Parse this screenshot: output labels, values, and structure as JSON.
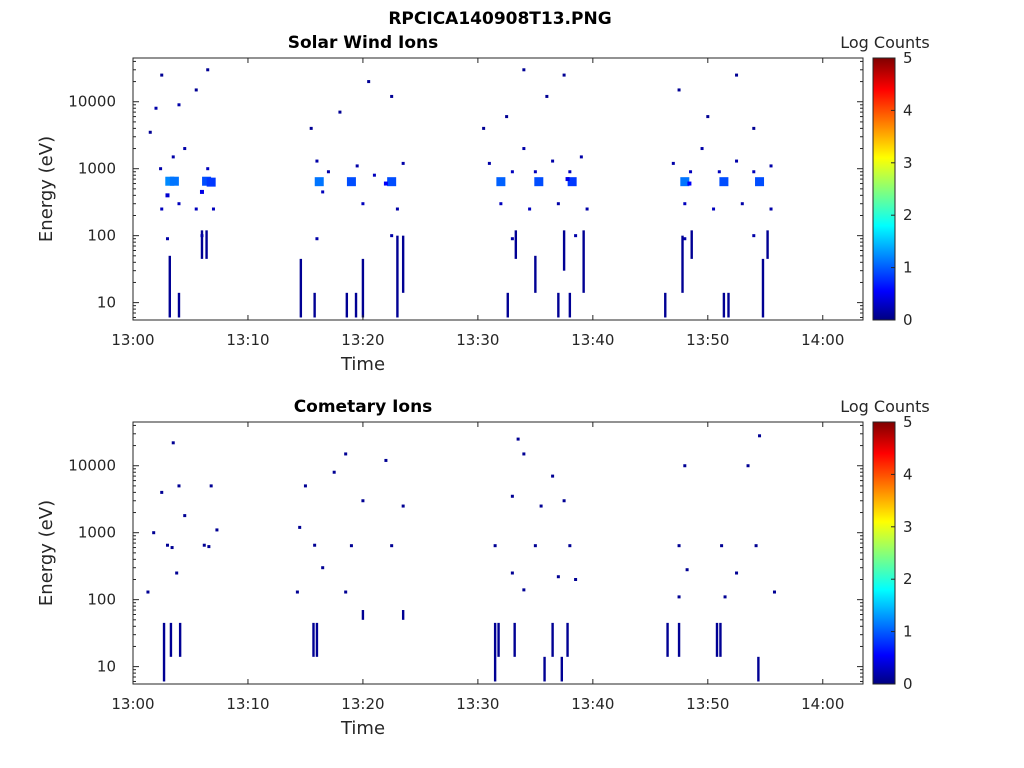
{
  "figure_title": "RPCICA140908T13.PNG",
  "chart_data": [
    {
      "type": "heatmap",
      "title": "Solar Wind Ions",
      "xlabel": "Time",
      "ylabel": "Energy (eV)",
      "x_tick_labels": [
        "13:00",
        "13:10",
        "13:20",
        "13:30",
        "13:40",
        "13:50",
        "14:00"
      ],
      "x_ticks_minutes": [
        0,
        10,
        20,
        30,
        40,
        50,
        60
      ],
      "xlim_minutes": [
        0,
        63.5
      ],
      "y_scale": "log",
      "ylim_ev": [
        5.5,
        45000
      ],
      "y_ticks": [
        10,
        100,
        1000,
        10000
      ],
      "y_tick_labels": [
        "10",
        "100",
        "1000",
        "10000"
      ],
      "grid": false,
      "colorbar": {
        "label": "Log Counts",
        "min": 0,
        "max": 5,
        "tick_labels": [
          "0",
          "1",
          "2",
          "3",
          "4",
          "5"
        ],
        "colormap": "jet"
      },
      "cells": [
        [
          3.2,
          650,
          1.3
        ],
        [
          3.6,
          650,
          1.2
        ],
        [
          6.4,
          650,
          1.0
        ],
        [
          6.8,
          630,
          0.9
        ],
        [
          16.2,
          640,
          1.2
        ],
        [
          19.0,
          640,
          1.0
        ],
        [
          22.5,
          640,
          1.0
        ],
        [
          22.0,
          600,
          0.6
        ],
        [
          32.0,
          640,
          1.1
        ],
        [
          35.3,
          640,
          1.0
        ],
        [
          38.2,
          640,
          0.9
        ],
        [
          37.8,
          700,
          0.5
        ],
        [
          48.0,
          640,
          1.2
        ],
        [
          51.4,
          640,
          1.0
        ],
        [
          54.5,
          640,
          1.0
        ],
        [
          48.4,
          600,
          0.6
        ],
        [
          2.5,
          250,
          0.3
        ],
        [
          3.0,
          400,
          0.4
        ],
        [
          4.0,
          300,
          0.3
        ],
        [
          5.5,
          250,
          0.3
        ],
        [
          6.0,
          450,
          0.5
        ],
        [
          7.0,
          250,
          0.3
        ],
        [
          2.4,
          1000,
          0.2
        ],
        [
          3.5,
          1500,
          0.2
        ],
        [
          4.5,
          2000,
          0.2
        ],
        [
          6.5,
          1000,
          0.3
        ],
        [
          2.0,
          8000,
          0.2
        ],
        [
          4.0,
          9000,
          0.2
        ],
        [
          1.5,
          3500,
          0.1
        ],
        [
          2.5,
          25000,
          0.1
        ],
        [
          5.5,
          15000,
          0.1
        ],
        [
          6.5,
          30000,
          0.1
        ],
        [
          16.0,
          1300,
          0.2
        ],
        [
          17.0,
          900,
          0.2
        ],
        [
          19.5,
          1100,
          0.2
        ],
        [
          21.0,
          800,
          0.3
        ],
        [
          23.5,
          1200,
          0.2
        ],
        [
          15.5,
          4000,
          0.1
        ],
        [
          18.0,
          7000,
          0.1
        ],
        [
          20.5,
          20000,
          0.1
        ],
        [
          22.5,
          12000,
          0.1
        ],
        [
          16.5,
          450,
          0.3
        ],
        [
          20.0,
          300,
          0.3
        ],
        [
          23.0,
          250,
          0.2
        ],
        [
          31.0,
          1200,
          0.2
        ],
        [
          33.0,
          900,
          0.3
        ],
        [
          34.0,
          2000,
          0.2
        ],
        [
          35.0,
          900,
          0.3
        ],
        [
          36.5,
          1300,
          0.2
        ],
        [
          38.0,
          900,
          0.3
        ],
        [
          39.0,
          1500,
          0.2
        ],
        [
          32.5,
          6000,
          0.1
        ],
        [
          34.0,
          30000,
          0.1
        ],
        [
          36.0,
          12000,
          0.1
        ],
        [
          37.5,
          25000,
          0.1
        ],
        [
          30.5,
          4000,
          0.1
        ],
        [
          32.0,
          300,
          0.3
        ],
        [
          34.5,
          250,
          0.3
        ],
        [
          37.0,
          300,
          0.2
        ],
        [
          39.5,
          250,
          0.2
        ],
        [
          47.0,
          1200,
          0.2
        ],
        [
          48.5,
          900,
          0.3
        ],
        [
          49.5,
          2000,
          0.2
        ],
        [
          51.0,
          900,
          0.3
        ],
        [
          52.5,
          1300,
          0.2
        ],
        [
          54.0,
          900,
          0.3
        ],
        [
          55.5,
          1100,
          0.2
        ],
        [
          47.5,
          15000,
          0.1
        ],
        [
          50.0,
          6000,
          0.1
        ],
        [
          52.5,
          25000,
          0.1
        ],
        [
          54.0,
          4000,
          0.1
        ],
        [
          48.0,
          300,
          0.3
        ],
        [
          50.5,
          250,
          0.3
        ],
        [
          53.0,
          300,
          0.2
        ],
        [
          55.5,
          250,
          0.2
        ],
        [
          3.0,
          90,
          0.2
        ],
        [
          6.0,
          100,
          0.2
        ],
        [
          16.0,
          90,
          0.2
        ],
        [
          22.5,
          100,
          0.2
        ],
        [
          33.0,
          90,
          0.2
        ],
        [
          38.5,
          100,
          0.2
        ],
        [
          48.0,
          90,
          0.2
        ],
        [
          54.0,
          100,
          0.2
        ]
      ],
      "lines": [
        [
          3.2,
          6,
          50,
          0.1
        ],
        [
          4.0,
          6,
          14,
          0.1
        ],
        [
          6.0,
          45,
          120,
          0.1
        ],
        [
          6.4,
          45,
          120,
          0.1
        ],
        [
          14.6,
          6,
          45,
          0.1
        ],
        [
          15.8,
          6,
          14,
          0.1
        ],
        [
          18.6,
          6,
          14,
          0.1
        ],
        [
          19.4,
          6,
          14,
          0.1
        ],
        [
          20.0,
          6,
          45,
          0.1
        ],
        [
          23.0,
          6,
          100,
          0.1
        ],
        [
          23.5,
          14,
          100,
          0.1
        ],
        [
          32.6,
          6,
          14,
          0.1
        ],
        [
          33.3,
          45,
          120,
          0.1
        ],
        [
          35.0,
          14,
          50,
          0.1
        ],
        [
          37.0,
          6,
          14,
          0.1
        ],
        [
          37.5,
          30,
          120,
          0.1
        ],
        [
          38.0,
          6,
          14,
          0.1
        ],
        [
          39.2,
          14,
          120,
          0.1
        ],
        [
          46.3,
          6,
          14,
          0.1
        ],
        [
          47.8,
          14,
          100,
          0.1
        ],
        [
          48.6,
          45,
          120,
          0.1
        ],
        [
          51.4,
          6,
          14,
          0.1
        ],
        [
          51.8,
          6,
          14,
          0.1
        ],
        [
          54.8,
          6,
          45,
          0.1
        ],
        [
          55.2,
          45,
          120,
          0.1
        ]
      ]
    },
    {
      "type": "heatmap",
      "title": "Cometary Ions",
      "xlabel": "Time",
      "ylabel": "Energy (eV)",
      "x_tick_labels": [
        "13:00",
        "13:10",
        "13:20",
        "13:30",
        "13:40",
        "13:50",
        "14:00"
      ],
      "x_ticks_minutes": [
        0,
        10,
        20,
        30,
        40,
        50,
        60
      ],
      "xlim_minutes": [
        0,
        63.5
      ],
      "y_scale": "log",
      "ylim_ev": [
        5.5,
        45000
      ],
      "y_ticks": [
        10,
        100,
        1000,
        10000
      ],
      "y_tick_labels": [
        "10",
        "100",
        "1000",
        "10000"
      ],
      "grid": false,
      "colorbar": {
        "label": "Log Counts",
        "min": 0,
        "max": 5,
        "tick_labels": [
          "0",
          "1",
          "2",
          "3",
          "4",
          "5"
        ],
        "colormap": "jet"
      },
      "cells": [
        [
          3.0,
          650,
          0.1
        ],
        [
          3.4,
          600,
          0.1
        ],
        [
          6.2,
          650,
          0.1
        ],
        [
          6.6,
          620,
          0.1
        ],
        [
          15.8,
          650,
          0.1
        ],
        [
          19.0,
          640,
          0.1
        ],
        [
          22.5,
          640,
          0.1
        ],
        [
          31.5,
          640,
          0.1
        ],
        [
          35.0,
          640,
          0.1
        ],
        [
          38.0,
          640,
          0.1
        ],
        [
          47.5,
          640,
          0.1
        ],
        [
          51.2,
          640,
          0.1
        ],
        [
          54.2,
          640,
          0.1
        ],
        [
          3.5,
          22000,
          0.1
        ],
        [
          2.5,
          4000,
          0.1
        ],
        [
          4.0,
          5000,
          0.1
        ],
        [
          4.5,
          1800,
          0.1
        ],
        [
          6.8,
          5000,
          0.1
        ],
        [
          1.8,
          1000,
          0.1
        ],
        [
          7.3,
          1100,
          0.1
        ],
        [
          14.5,
          1200,
          0.1
        ],
        [
          15.0,
          5000,
          0.1
        ],
        [
          17.5,
          8000,
          0.1
        ],
        [
          18.5,
          15000,
          0.1
        ],
        [
          20.0,
          3000,
          0.1
        ],
        [
          22.0,
          12000,
          0.1
        ],
        [
          23.5,
          2500,
          0.1
        ],
        [
          33.5,
          25000,
          0.1
        ],
        [
          34.0,
          15000,
          0.1
        ],
        [
          33.0,
          3500,
          0.1
        ],
        [
          35.5,
          2500,
          0.1
        ],
        [
          36.5,
          7000,
          0.1
        ],
        [
          37.5,
          3000,
          0.1
        ],
        [
          48.0,
          10000,
          0.1
        ],
        [
          53.5,
          10000,
          0.1
        ],
        [
          54.5,
          28000,
          0.1
        ],
        [
          1.3,
          130,
          0.1
        ],
        [
          3.8,
          250,
          0.1
        ],
        [
          14.3,
          130,
          0.1
        ],
        [
          16.5,
          300,
          0.1
        ],
        [
          18.5,
          130,
          0.1
        ],
        [
          33.0,
          250,
          0.1
        ],
        [
          34.0,
          140,
          0.1
        ],
        [
          37.0,
          220,
          0.1
        ],
        [
          38.5,
          200,
          0.1
        ],
        [
          48.2,
          280,
          0.1
        ],
        [
          52.5,
          250,
          0.1
        ],
        [
          55.8,
          130,
          0.1
        ],
        [
          47.5,
          110,
          0.1
        ],
        [
          51.5,
          110,
          0.1
        ]
      ],
      "lines": [
        [
          2.7,
          6,
          45,
          0.1
        ],
        [
          3.3,
          14,
          45,
          0.1
        ],
        [
          4.1,
          14,
          45,
          0.1
        ],
        [
          15.7,
          14,
          45,
          0.1
        ],
        [
          16.0,
          14,
          45,
          0.1
        ],
        [
          20.0,
          50,
          70,
          0.1
        ],
        [
          23.5,
          50,
          70,
          0.1
        ],
        [
          31.5,
          6,
          45,
          0.1
        ],
        [
          31.8,
          14,
          45,
          0.1
        ],
        [
          33.2,
          14,
          45,
          0.1
        ],
        [
          35.8,
          6,
          14,
          0.1
        ],
        [
          36.5,
          14,
          45,
          0.1
        ],
        [
          37.3,
          6,
          14,
          0.1
        ],
        [
          37.8,
          14,
          45,
          0.1
        ],
        [
          46.5,
          14,
          45,
          0.1
        ],
        [
          47.5,
          14,
          45,
          0.1
        ],
        [
          50.8,
          14,
          45,
          0.1
        ],
        [
          51.1,
          14,
          45,
          0.1
        ],
        [
          54.4,
          6,
          14,
          0.1
        ]
      ]
    }
  ]
}
